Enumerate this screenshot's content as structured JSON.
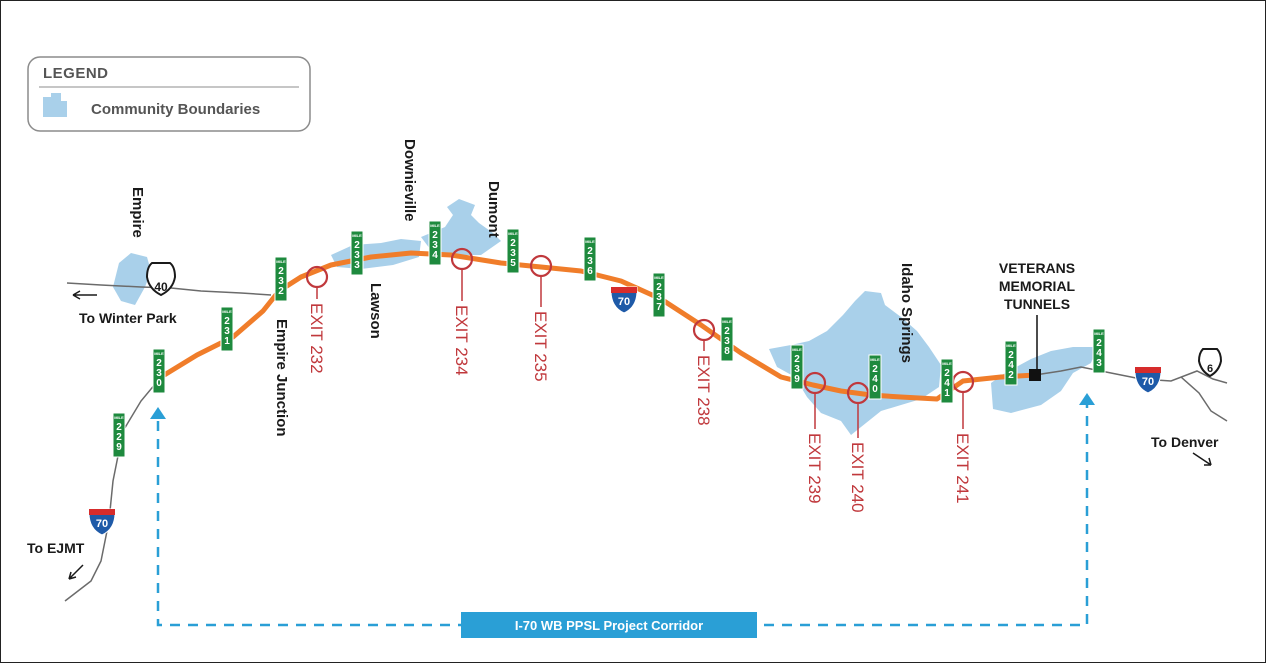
{
  "legend": {
    "title": "LEGEND",
    "item_label": "Community Boundaries",
    "community_color": "#a9d0ea"
  },
  "colors": {
    "corridor_road": "#f07d2a",
    "road": "#6b6b6b",
    "exit_marker": "#c0383c",
    "mile_marker": "#1e8a3e",
    "interstate_shield_blue": "#1e5aa8",
    "interstate_shield_red": "#d62c2c",
    "corridor_dash": "#2a9fd6",
    "corridor_label_bg": "#2a9fd6"
  },
  "places": {
    "empire": "Empire",
    "downieville": "Downieville",
    "dumont": "Dumont",
    "lawson": "Lawson",
    "empire_junction": "Empire Junction",
    "idaho_springs": "Idaho Springs",
    "tunnels_line1": "VETERANS",
    "tunnels_line2": "MEMORIAL",
    "tunnels_line3": "TUNNELS"
  },
  "directions": {
    "winter_park": "To Winter Park",
    "ejmt": "To EJMT",
    "denver": "To Denver"
  },
  "exits": [
    "EXIT 232",
    "EXIT 234",
    "EXIT 235",
    "EXIT 238",
    "EXIT 239",
    "EXIT 240",
    "EXIT 241"
  ],
  "mile_marker_word": "MILE",
  "mile_markers": [
    [
      "2",
      "2",
      "9"
    ],
    [
      "2",
      "3",
      "0"
    ],
    [
      "2",
      "3",
      "1"
    ],
    [
      "2",
      "3",
      "2"
    ],
    [
      "2",
      "3",
      "3"
    ],
    [
      "2",
      "3",
      "4"
    ],
    [
      "2",
      "3",
      "5"
    ],
    [
      "2",
      "3",
      "6"
    ],
    [
      "2",
      "3",
      "7"
    ],
    [
      "2",
      "3",
      "8"
    ],
    [
      "2",
      "3",
      "9"
    ],
    [
      "2",
      "4",
      "0"
    ],
    [
      "2",
      "4",
      "1"
    ],
    [
      "2",
      "4",
      "2"
    ],
    [
      "2",
      "4",
      "3"
    ]
  ],
  "shields": {
    "us40": "40",
    "i70": "70",
    "us6": "6"
  },
  "corridor_label": "I-70 WB PPSL Project Corridor"
}
